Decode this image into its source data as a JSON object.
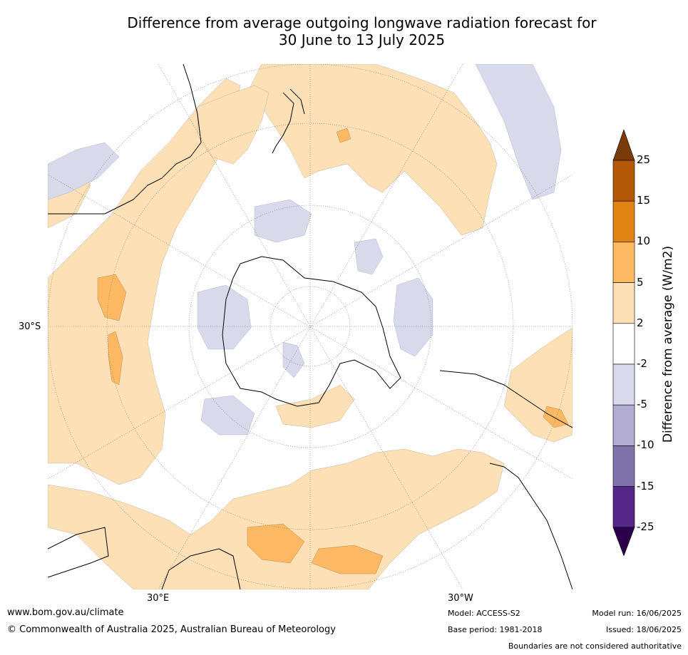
{
  "title_line1": "Difference from average outgoing longwave radiation forecast for",
  "title_line2": "30 June to 13 July 2025",
  "map_labels": {
    "lat_30s": "30°S",
    "lon_30e": "30°E",
    "lon_30w": "30°W"
  },
  "colorbar": {
    "label": "Difference from average (W/m2)",
    "ticks": [
      "25",
      "15",
      "10",
      "5",
      "2",
      "-2",
      "-5",
      "-10",
      "-15",
      "-25"
    ],
    "bins": [
      {
        "range": "above 25",
        "color": "#7a3b08"
      },
      {
        "range": "15 to 25",
        "color": "#b35806"
      },
      {
        "range": "10 to 15",
        "color": "#e08214"
      },
      {
        "range": "5 to 10",
        "color": "#fdb863"
      },
      {
        "range": "2 to 5",
        "color": "#fee0b6"
      },
      {
        "range": "-2 to 2",
        "color": "#ffffff"
      },
      {
        "range": "-5 to -2",
        "color": "#d8daeb"
      },
      {
        "range": "-10 to -5",
        "color": "#b2abd2"
      },
      {
        "range": "-15 to -10",
        "color": "#8073ac"
      },
      {
        "range": "-25 to -15",
        "color": "#542788"
      },
      {
        "range": "below -25",
        "color": "#2d004b"
      }
    ]
  },
  "footer": {
    "website": "www.bom.gov.au/climate",
    "copyright": "© Commonwealth of Australia 2025, Australian Bureau of Meteorology",
    "model": "Model: ACCESS-S2",
    "base_period": "Base period: 1981-2018",
    "model_run": "Model run: 16/06/2025",
    "issued": "Issued: 18/06/2025",
    "disclaimer": "Boundaries are not considered authoritative"
  }
}
